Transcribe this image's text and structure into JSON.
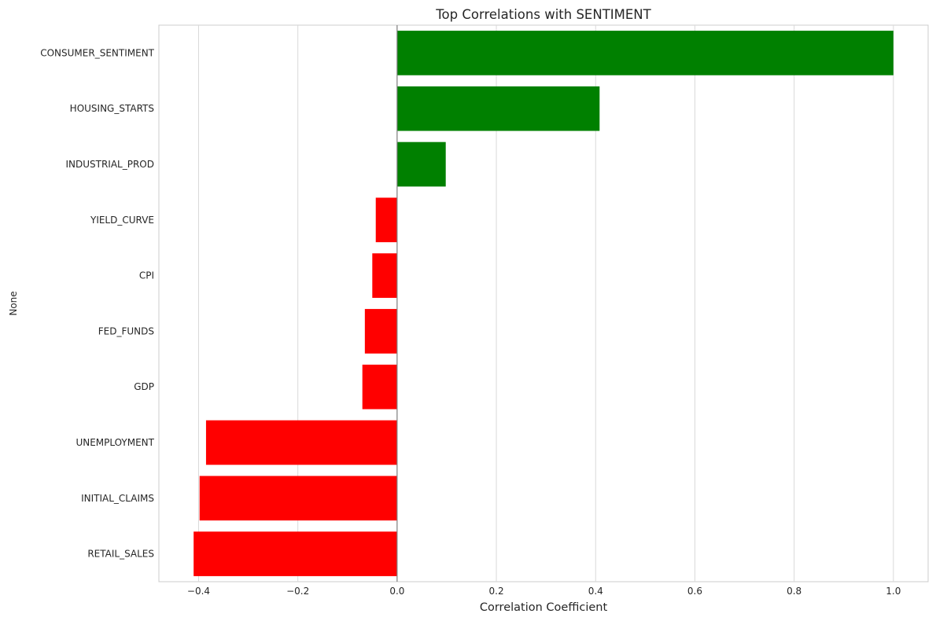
{
  "chart_data": {
    "type": "bar",
    "orientation": "horizontal",
    "title": "Top Correlations with SENTIMENT",
    "xlabel": "Correlation Coefficient",
    "ylabel": "None",
    "xlim": [
      -0.48,
      1.07
    ],
    "xticks": [
      -0.4,
      -0.2,
      0.0,
      0.2,
      0.4,
      0.6,
      0.8,
      1.0
    ],
    "xtick_labels": [
      "−0.4",
      "−0.2",
      "0.0",
      "0.2",
      "0.4",
      "0.6",
      "0.8",
      "1.0"
    ],
    "grid": "vertical",
    "categories": [
      "CONSUMER_SENTIMENT",
      "HOUSING_STARTS",
      "INDUSTRIAL_PROD",
      "YIELD_CURVE",
      "CPI",
      "FED_FUNDS",
      "GDP",
      "UNEMPLOYMENT",
      "INITIAL_CLAIMS",
      "RETAIL_SALES"
    ],
    "values": [
      1.0,
      0.408,
      0.098,
      -0.043,
      -0.05,
      -0.065,
      -0.07,
      -0.385,
      -0.398,
      -0.41
    ],
    "positive_color": "#008000",
    "negative_color": "#ff0000"
  }
}
